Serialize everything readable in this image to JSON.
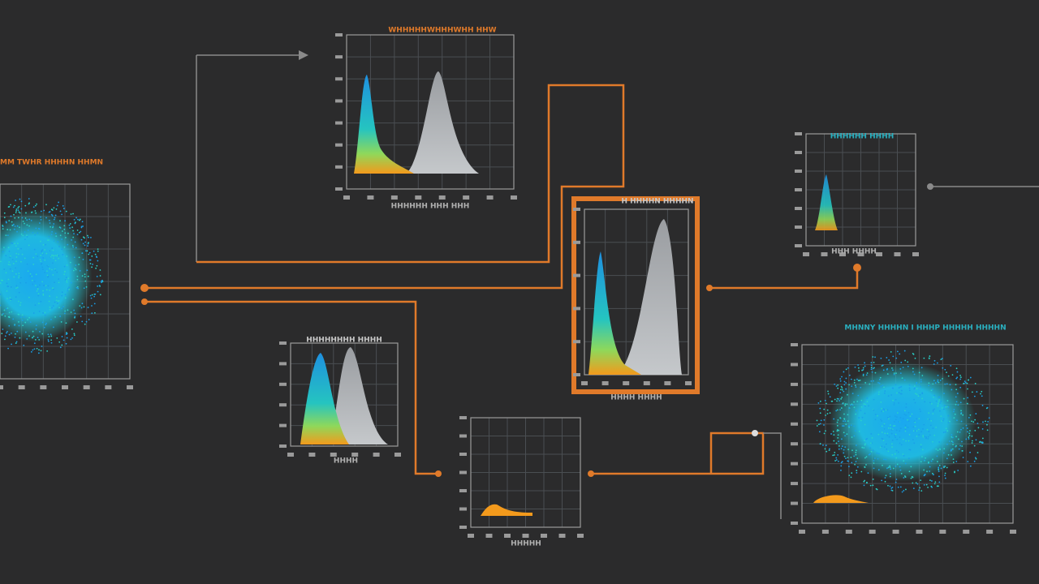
{
  "panels": [
    {
      "title": "MM TWHR HHHHN HHMN"
    },
    {
      "title": "WHHHHHWHHHWHH HHW",
      "footer": "HHHHHH HHH HHH"
    },
    {
      "title": "H HHHHN HHHHN",
      "footer": "HHHH HHHH"
    },
    {
      "title": "HHHHHH HHHH",
      "footer": "HHH HHHH"
    },
    {
      "title": "HHHHHHHH HHHH",
      "footer": "HHHH"
    },
    {
      "footer": "HHHHH"
    },
    {
      "title": "MHNNY HHHHN I HHHP HHHHH HHHHN"
    }
  ]
}
